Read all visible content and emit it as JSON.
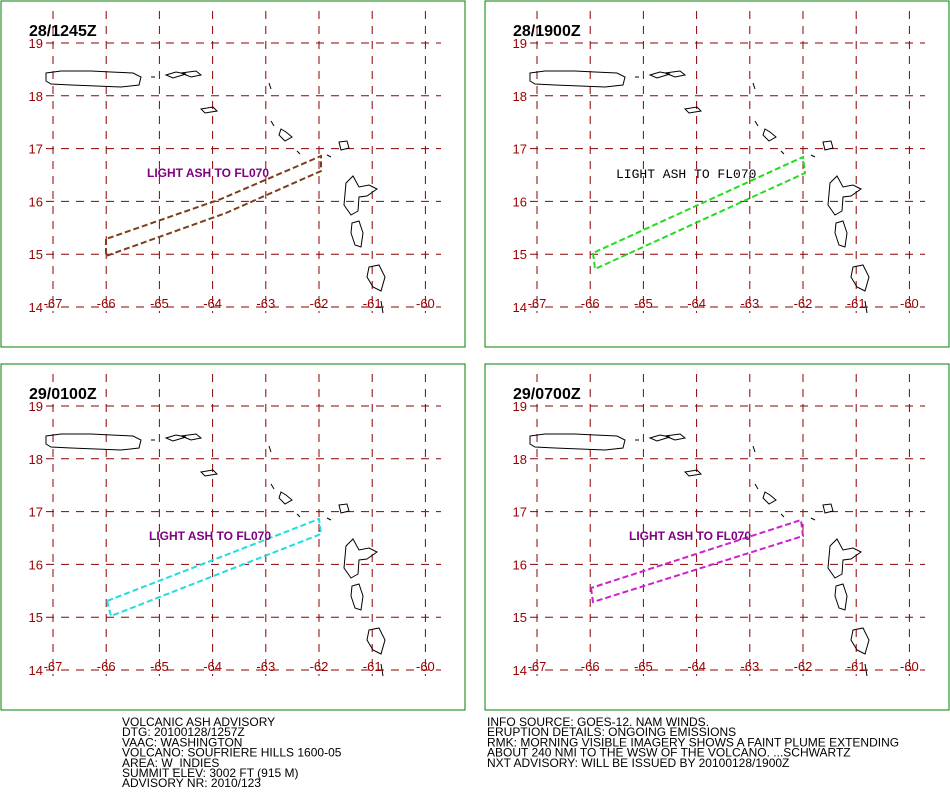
{
  "grid": {
    "lat": [
      19,
      18,
      17,
      16,
      15,
      14
    ],
    "lon": [
      -67,
      -66,
      -65,
      -64,
      -63,
      -62,
      -61,
      -60
    ]
  },
  "panels": [
    {
      "time": "28/1245Z",
      "annotation": "LIGHT ASH TO FL070"
    },
    {
      "time": "28/1900Z",
      "annotation": "LIGHT ASH TO FL070"
    },
    {
      "time": "29/0100Z",
      "annotation": "LIGHT ASH TO FL070"
    },
    {
      "time": "29/0700Z",
      "annotation": "LIGHT ASH TO FL070"
    }
  ],
  "advisory_left": [
    "VOLCANIC ASH ADVISORY",
    "DTG: 20100128/1257Z",
    "VAAC: WASHINGTON",
    "VOLCANO: SOUFRIERE HILLS 1600-05",
    "AREA: W_INDIES",
    "SUMMIT ELEV: 3002 FT (915 M)",
    "ADVISORY NR: 2010/123"
  ],
  "advisory_right": [
    "INFO SOURCE: GOES-12. NAM WINDS.",
    "ERUPTION DETAILS: ONGOING EMISSIONS",
    "RMK: MORNING VISIBLE IMAGERY SHOWS A FAINT PLUME EXTENDING",
    "ABOUT 240 NMI TO THE WSW OF THE VOLCANO. ...SCHWARTZ",
    "NXT ADVISORY: WILL BE ISSUED BY 20100128/1900Z"
  ]
}
